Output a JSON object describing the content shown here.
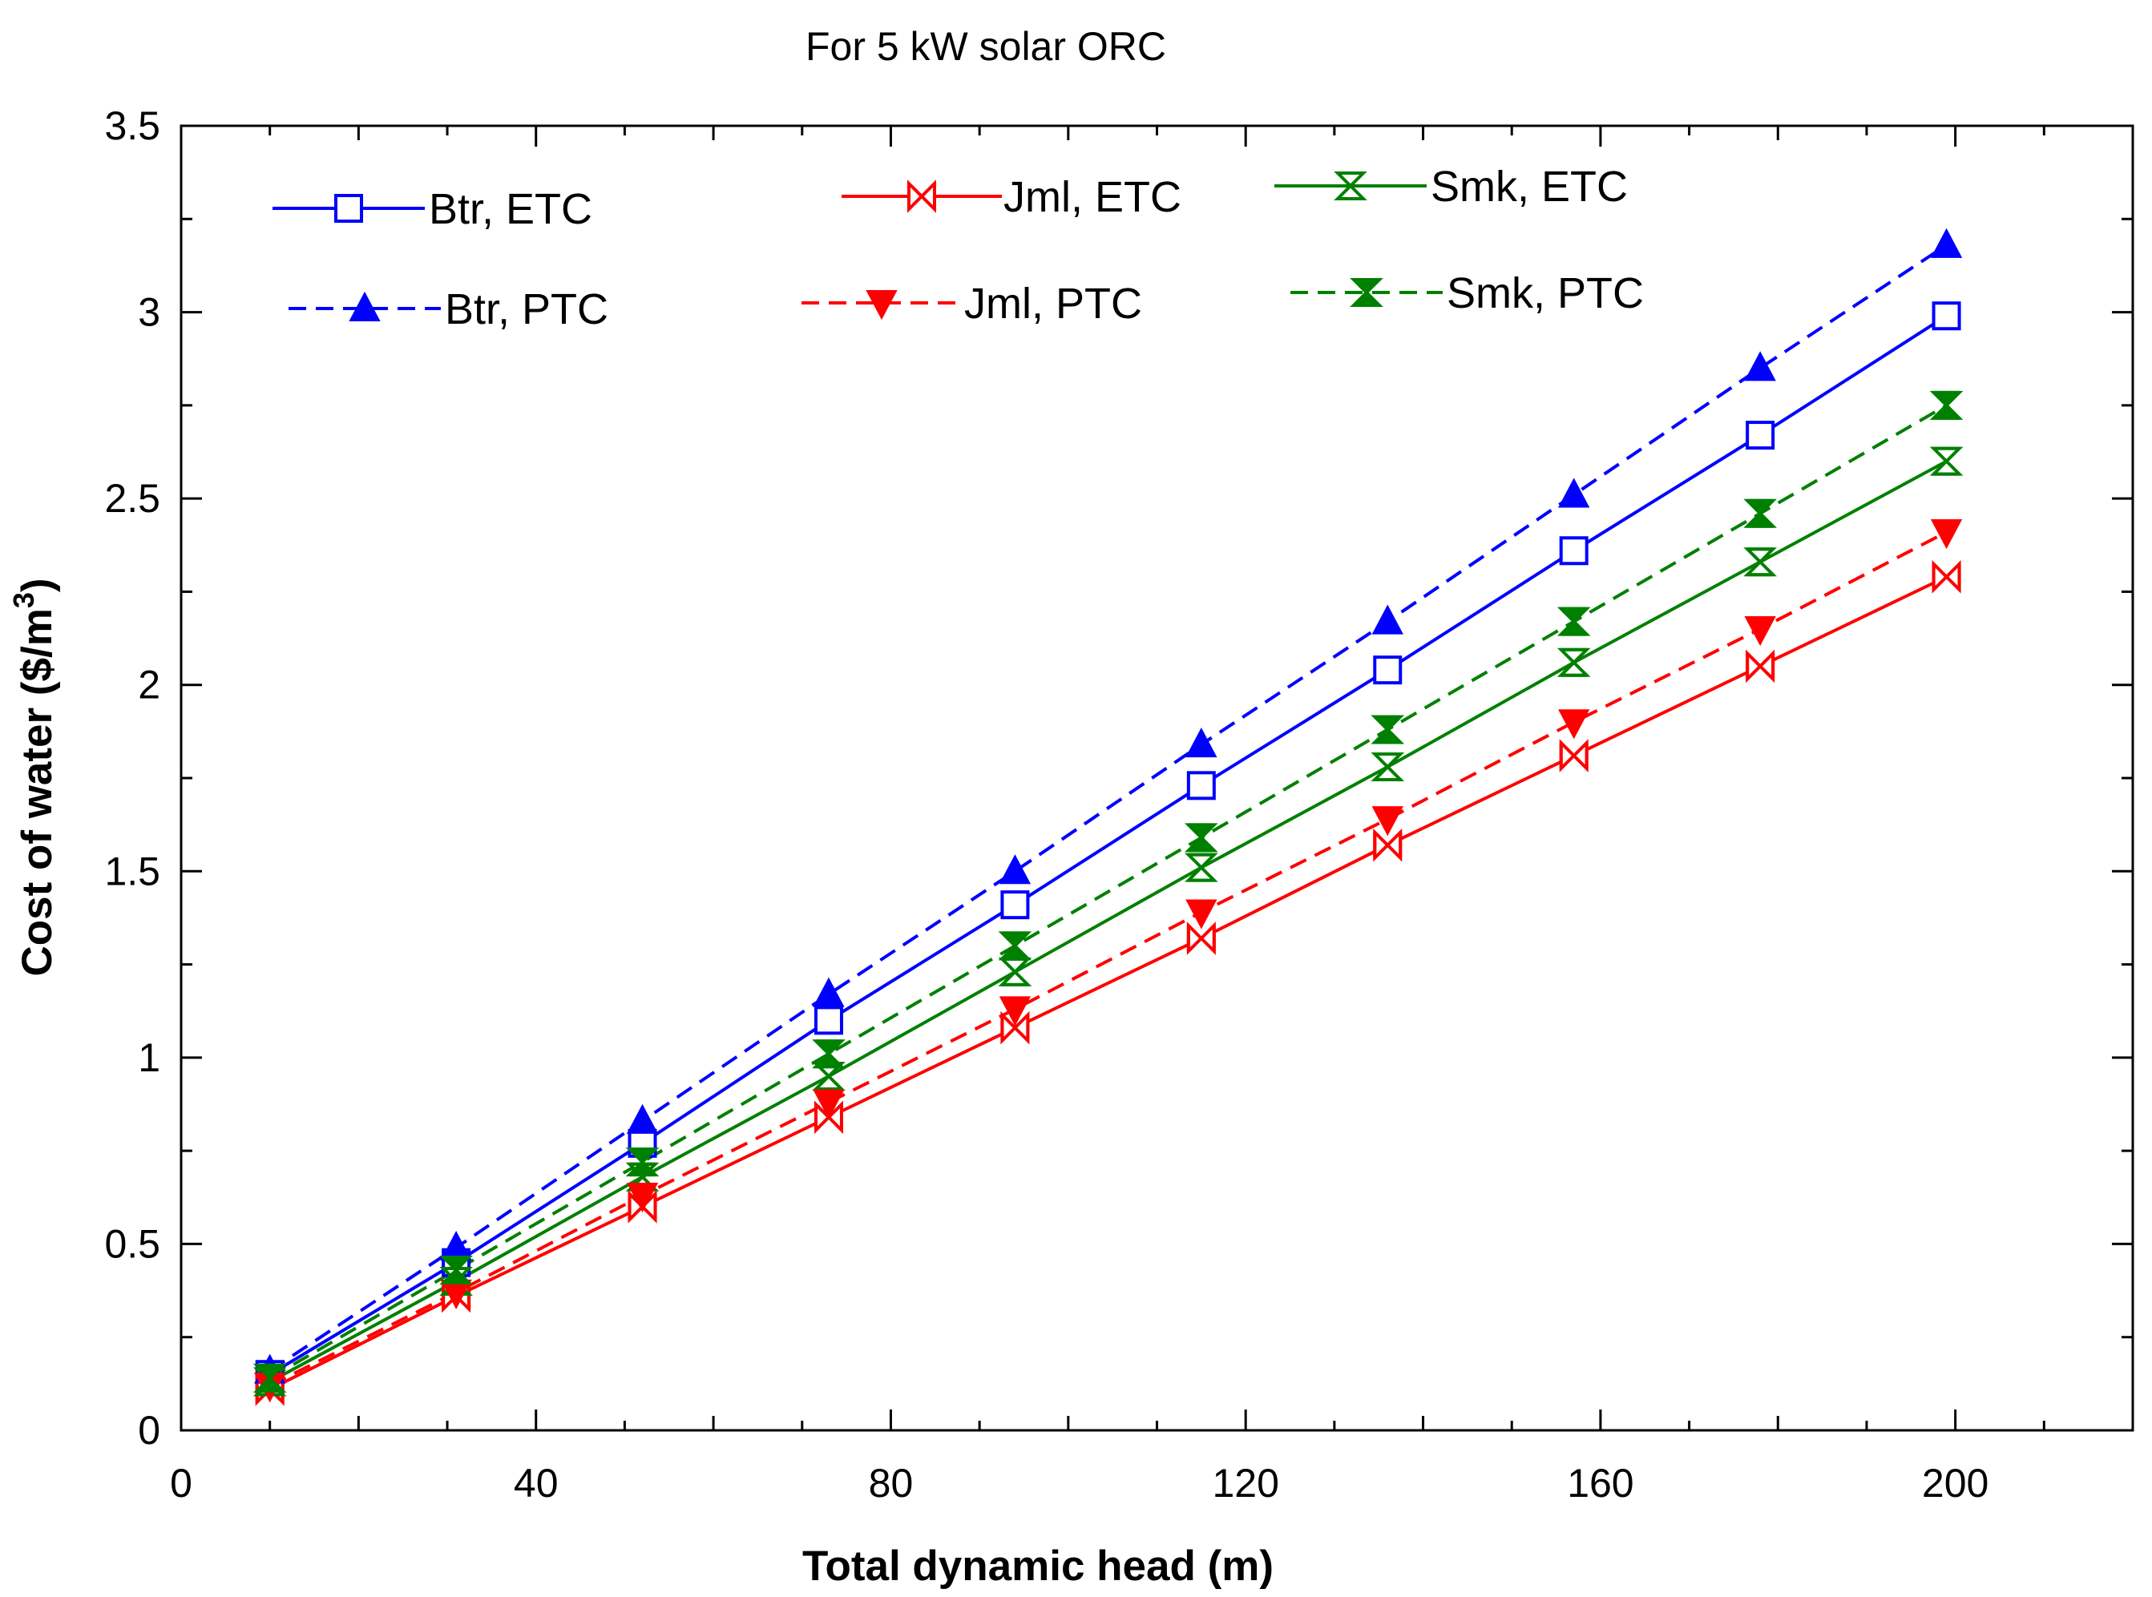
{
  "chart_data": {
    "type": "line",
    "title": "For 5 kW solar ORC",
    "xlabel": "Total dynamic head (m)",
    "ylabel": "Cost of water ($/m",
    "ylabel_superscript": "3",
    "ylabel_suffix": ")",
    "xlim": [
      0,
      220
    ],
    "ylim": [
      0,
      3.5
    ],
    "x_ticks": [
      0,
      40,
      80,
      120,
      160,
      200
    ],
    "x_tick_labels": [
      "0",
      "40",
      "80",
      "120",
      "160",
      "200"
    ],
    "y_ticks": [
      0,
      0.5,
      1,
      1.5,
      2,
      2.5,
      3,
      3.5
    ],
    "y_tick_labels": [
      "0",
      "0.5",
      "1",
      "1.5",
      "2",
      "2.5",
      "3",
      "3.5"
    ],
    "x": [
      10,
      31,
      52,
      73,
      94,
      115,
      136,
      157,
      178,
      199
    ],
    "series": [
      {
        "name": "Btr, ETC",
        "color": "#0000ff",
        "dash": "solid",
        "marker": "open-square",
        "values": [
          0.15,
          0.45,
          0.77,
          1.1,
          1.41,
          1.73,
          2.04,
          2.36,
          2.67,
          2.99
        ]
      },
      {
        "name": "Jml, ETC",
        "color": "#ff0000",
        "dash": "solid",
        "marker": "bowtie-open",
        "values": [
          0.11,
          0.36,
          0.6,
          0.84,
          1.08,
          1.32,
          1.57,
          1.81,
          2.05,
          2.29
        ]
      },
      {
        "name": "Smk, ETC",
        "color": "#008000",
        "dash": "solid",
        "marker": "hourglass-open",
        "values": [
          0.13,
          0.4,
          0.68,
          0.95,
          1.23,
          1.51,
          1.78,
          2.06,
          2.33,
          2.6
        ]
      },
      {
        "name": "Btr, PTC",
        "color": "#0000ff",
        "dash": "dashed",
        "marker": "triangle-up-filled",
        "values": [
          0.16,
          0.49,
          0.83,
          1.17,
          1.5,
          1.84,
          2.17,
          2.51,
          2.85,
          3.18
        ]
      },
      {
        "name": "Jml, PTC",
        "color": "#ff0000",
        "dash": "dashed",
        "marker": "triangle-down-filled",
        "values": [
          0.12,
          0.37,
          0.63,
          0.88,
          1.13,
          1.39,
          1.64,
          1.9,
          2.15,
          2.41
        ]
      },
      {
        "name": "Smk, PTC",
        "color": "#008000",
        "dash": "dashed",
        "marker": "hourglass-filled",
        "values": [
          0.14,
          0.43,
          0.72,
          1.01,
          1.3,
          1.59,
          1.88,
          2.17,
          2.46,
          2.75
        ]
      }
    ],
    "legend": [
      {
        "label": "Btr, ETC"
      },
      {
        "label": "Jml, ETC"
      },
      {
        "label": "Smk, ETC"
      },
      {
        "label": "Btr, PTC"
      },
      {
        "label": "Jml, PTC"
      },
      {
        "label": "Smk, PTC"
      }
    ],
    "legend_position": "top-left, two rows",
    "grid": false
  }
}
